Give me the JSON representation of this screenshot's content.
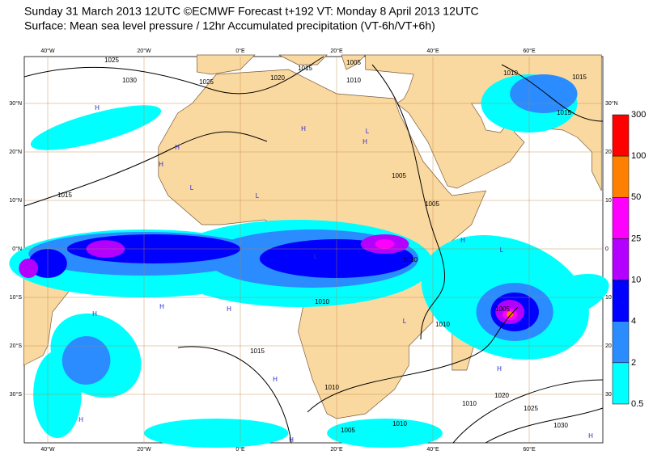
{
  "header": {
    "title": "Sunday 31 March 2013 12UTC ©ECMWF Forecast t+192 VT: Monday 8 April 2013 12UTC",
    "subtitle": "Surface: Mean sea level pressure / 12hr Accumulated precipitation (VT-6h/VT+6h)"
  },
  "map": {
    "longitude_labels": [
      "40°W",
      "20°W",
      "0°E",
      "20°E",
      "40°E",
      "60°E"
    ],
    "latitude_labels_left": [
      "30°N",
      "20°N",
      "10°N",
      "0°N",
      "10°S",
      "20°S",
      "30°S"
    ],
    "latitude_labels_right": [
      "30°N",
      "20",
      "10",
      "0",
      "10",
      "20",
      "30"
    ],
    "isobar_labels": [
      "1025",
      "1030",
      "1025",
      "1020",
      "1015",
      "1005",
      "1010",
      "1010",
      "1015",
      "1015",
      "1005",
      "1005",
      "1010",
      "1010",
      "1015",
      "1015",
      "1010",
      "1010",
      "1005",
      "1020",
      "1010",
      "1025",
      "1030",
      "1010",
      "1005"
    ],
    "pressure_centres": [
      "H",
      "H",
      "H",
      "H",
      "L",
      "H",
      "L",
      "L",
      "H",
      "H",
      "H",
      "L",
      "H",
      "L",
      "H",
      "L",
      "H",
      "H",
      "H",
      "H"
    ]
  },
  "legend": {
    "labels": [
      "300",
      "100",
      "50",
      "25",
      "10",
      "4",
      "2",
      "0.5"
    ],
    "colors": [
      "#ff0000",
      "#ff8000",
      "#ff00ff",
      "#b400ff",
      "#0000ff",
      "#2a8cff",
      "#00ffff"
    ]
  }
}
